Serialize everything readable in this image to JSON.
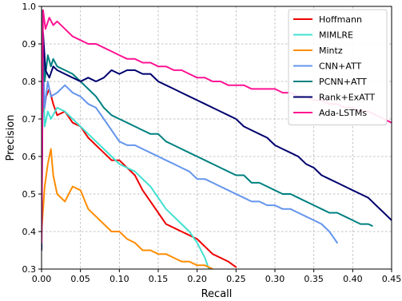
{
  "chart_data": {
    "type": "line",
    "xlabel": "Recall",
    "ylabel": "Precision",
    "xlim": [
      0.0,
      0.45
    ],
    "ylim": [
      0.3,
      1.0
    ],
    "xticks": [
      "0.00",
      "0.05",
      "0.10",
      "0.15",
      "0.20",
      "0.25",
      "0.30",
      "0.35",
      "0.40",
      "0.45"
    ],
    "yticks": [
      "0.3",
      "0.4",
      "0.5",
      "0.6",
      "0.7",
      "0.8",
      "0.9",
      "1.0"
    ],
    "grid": true,
    "legend_position": "top-right",
    "series": [
      {
        "name": "Hoffmann",
        "color": "#ee0000",
        "points": [
          [
            0.0,
            0.99
          ],
          [
            0.003,
            0.72
          ],
          [
            0.006,
            0.76
          ],
          [
            0.01,
            0.78
          ],
          [
            0.015,
            0.74
          ],
          [
            0.02,
            0.71
          ],
          [
            0.03,
            0.72
          ],
          [
            0.04,
            0.69
          ],
          [
            0.05,
            0.68
          ],
          [
            0.06,
            0.65
          ],
          [
            0.07,
            0.63
          ],
          [
            0.08,
            0.61
          ],
          [
            0.09,
            0.59
          ],
          [
            0.1,
            0.59
          ],
          [
            0.11,
            0.57
          ],
          [
            0.12,
            0.55
          ],
          [
            0.13,
            0.51
          ],
          [
            0.14,
            0.48
          ],
          [
            0.15,
            0.45
          ],
          [
            0.16,
            0.42
          ],
          [
            0.17,
            0.41
          ],
          [
            0.18,
            0.4
          ],
          [
            0.19,
            0.39
          ],
          [
            0.2,
            0.38
          ],
          [
            0.21,
            0.36
          ],
          [
            0.22,
            0.34
          ],
          [
            0.23,
            0.33
          ],
          [
            0.24,
            0.32
          ],
          [
            0.25,
            0.305
          ]
        ]
      },
      {
        "name": "MIMLRE",
        "color": "#40e0d0",
        "points": [
          [
            0.0,
            0.99
          ],
          [
            0.004,
            0.68
          ],
          [
            0.008,
            0.72
          ],
          [
            0.012,
            0.7
          ],
          [
            0.02,
            0.73
          ],
          [
            0.03,
            0.72
          ],
          [
            0.04,
            0.7
          ],
          [
            0.05,
            0.68
          ],
          [
            0.06,
            0.66
          ],
          [
            0.07,
            0.64
          ],
          [
            0.08,
            0.62
          ],
          [
            0.09,
            0.6
          ],
          [
            0.1,
            0.58
          ],
          [
            0.11,
            0.57
          ],
          [
            0.12,
            0.56
          ],
          [
            0.13,
            0.54
          ],
          [
            0.14,
            0.52
          ],
          [
            0.15,
            0.49
          ],
          [
            0.16,
            0.46
          ],
          [
            0.17,
            0.44
          ],
          [
            0.18,
            0.42
          ],
          [
            0.19,
            0.4
          ],
          [
            0.2,
            0.37
          ],
          [
            0.21,
            0.33
          ],
          [
            0.215,
            0.3
          ]
        ]
      },
      {
        "name": "Mintz",
        "color": "#ff8c00",
        "points": [
          [
            0.0,
            0.4
          ],
          [
            0.004,
            0.52
          ],
          [
            0.008,
            0.58
          ],
          [
            0.012,
            0.62
          ],
          [
            0.015,
            0.55
          ],
          [
            0.02,
            0.5
          ],
          [
            0.03,
            0.48
          ],
          [
            0.04,
            0.52
          ],
          [
            0.05,
            0.51
          ],
          [
            0.06,
            0.46
          ],
          [
            0.07,
            0.44
          ],
          [
            0.08,
            0.42
          ],
          [
            0.09,
            0.4
          ],
          [
            0.1,
            0.4
          ],
          [
            0.11,
            0.38
          ],
          [
            0.12,
            0.37
          ],
          [
            0.13,
            0.35
          ],
          [
            0.14,
            0.35
          ],
          [
            0.15,
            0.34
          ],
          [
            0.16,
            0.34
          ],
          [
            0.17,
            0.33
          ],
          [
            0.18,
            0.32
          ],
          [
            0.19,
            0.32
          ],
          [
            0.2,
            0.31
          ],
          [
            0.21,
            0.31
          ],
          [
            0.22,
            0.3
          ]
        ]
      },
      {
        "name": "CNN+ATT",
        "color": "#6495ed",
        "points": [
          [
            0.0,
            0.99
          ],
          [
            0.004,
            0.73
          ],
          [
            0.008,
            0.8
          ],
          [
            0.012,
            0.76
          ],
          [
            0.02,
            0.77
          ],
          [
            0.03,
            0.79
          ],
          [
            0.04,
            0.77
          ],
          [
            0.05,
            0.76
          ],
          [
            0.06,
            0.74
          ],
          [
            0.07,
            0.73
          ],
          [
            0.08,
            0.7
          ],
          [
            0.09,
            0.67
          ],
          [
            0.1,
            0.64
          ],
          [
            0.11,
            0.63
          ],
          [
            0.12,
            0.63
          ],
          [
            0.13,
            0.62
          ],
          [
            0.14,
            0.61
          ],
          [
            0.15,
            0.6
          ],
          [
            0.16,
            0.59
          ],
          [
            0.17,
            0.58
          ],
          [
            0.18,
            0.57
          ],
          [
            0.19,
            0.56
          ],
          [
            0.2,
            0.54
          ],
          [
            0.21,
            0.54
          ],
          [
            0.22,
            0.53
          ],
          [
            0.23,
            0.52
          ],
          [
            0.24,
            0.51
          ],
          [
            0.25,
            0.5
          ],
          [
            0.26,
            0.49
          ],
          [
            0.27,
            0.48
          ],
          [
            0.28,
            0.48
          ],
          [
            0.29,
            0.47
          ],
          [
            0.3,
            0.47
          ],
          [
            0.31,
            0.46
          ],
          [
            0.32,
            0.46
          ],
          [
            0.33,
            0.45
          ],
          [
            0.34,
            0.44
          ],
          [
            0.35,
            0.43
          ],
          [
            0.36,
            0.42
          ],
          [
            0.37,
            0.4
          ],
          [
            0.38,
            0.37
          ]
        ]
      },
      {
        "name": "PCNN+ATT",
        "color": "#008080",
        "points": [
          [
            0.0,
            0.99
          ],
          [
            0.004,
            0.8
          ],
          [
            0.008,
            0.87
          ],
          [
            0.012,
            0.84
          ],
          [
            0.015,
            0.86
          ],
          [
            0.02,
            0.84
          ],
          [
            0.03,
            0.83
          ],
          [
            0.04,
            0.82
          ],
          [
            0.05,
            0.8
          ],
          [
            0.06,
            0.78
          ],
          [
            0.07,
            0.76
          ],
          [
            0.08,
            0.73
          ],
          [
            0.09,
            0.71
          ],
          [
            0.1,
            0.7
          ],
          [
            0.11,
            0.69
          ],
          [
            0.12,
            0.68
          ],
          [
            0.13,
            0.67
          ],
          [
            0.14,
            0.66
          ],
          [
            0.15,
            0.66
          ],
          [
            0.16,
            0.64
          ],
          [
            0.17,
            0.63
          ],
          [
            0.18,
            0.62
          ],
          [
            0.19,
            0.61
          ],
          [
            0.2,
            0.6
          ],
          [
            0.21,
            0.59
          ],
          [
            0.22,
            0.58
          ],
          [
            0.23,
            0.57
          ],
          [
            0.24,
            0.56
          ],
          [
            0.25,
            0.55
          ],
          [
            0.26,
            0.55
          ],
          [
            0.27,
            0.53
          ],
          [
            0.28,
            0.53
          ],
          [
            0.29,
            0.52
          ],
          [
            0.3,
            0.51
          ],
          [
            0.31,
            0.5
          ],
          [
            0.32,
            0.5
          ],
          [
            0.33,
            0.49
          ],
          [
            0.34,
            0.48
          ],
          [
            0.35,
            0.47
          ],
          [
            0.36,
            0.46
          ],
          [
            0.37,
            0.45
          ],
          [
            0.38,
            0.45
          ],
          [
            0.39,
            0.44
          ],
          [
            0.4,
            0.43
          ],
          [
            0.41,
            0.42
          ],
          [
            0.42,
            0.42
          ],
          [
            0.425,
            0.415
          ]
        ]
      },
      {
        "name": "Rank+ExATT",
        "color": "#00006e",
        "points": [
          [
            0.0,
            0.35
          ],
          [
            0.002,
            0.93
          ],
          [
            0.005,
            0.83
          ],
          [
            0.01,
            0.81
          ],
          [
            0.015,
            0.84
          ],
          [
            0.02,
            0.83
          ],
          [
            0.03,
            0.82
          ],
          [
            0.04,
            0.81
          ],
          [
            0.05,
            0.8
          ],
          [
            0.06,
            0.81
          ],
          [
            0.07,
            0.8
          ],
          [
            0.08,
            0.81
          ],
          [
            0.09,
            0.83
          ],
          [
            0.1,
            0.82
          ],
          [
            0.11,
            0.83
          ],
          [
            0.12,
            0.83
          ],
          [
            0.13,
            0.82
          ],
          [
            0.14,
            0.82
          ],
          [
            0.15,
            0.8
          ],
          [
            0.16,
            0.79
          ],
          [
            0.17,
            0.78
          ],
          [
            0.18,
            0.77
          ],
          [
            0.19,
            0.76
          ],
          [
            0.2,
            0.75
          ],
          [
            0.21,
            0.74
          ],
          [
            0.22,
            0.73
          ],
          [
            0.23,
            0.72
          ],
          [
            0.24,
            0.71
          ],
          [
            0.25,
            0.7
          ],
          [
            0.26,
            0.68
          ],
          [
            0.27,
            0.67
          ],
          [
            0.28,
            0.66
          ],
          [
            0.29,
            0.65
          ],
          [
            0.3,
            0.63
          ],
          [
            0.31,
            0.62
          ],
          [
            0.32,
            0.61
          ],
          [
            0.33,
            0.6
          ],
          [
            0.34,
            0.58
          ],
          [
            0.35,
            0.57
          ],
          [
            0.36,
            0.55
          ],
          [
            0.37,
            0.54
          ],
          [
            0.38,
            0.53
          ],
          [
            0.39,
            0.52
          ],
          [
            0.4,
            0.51
          ],
          [
            0.41,
            0.5
          ],
          [
            0.42,
            0.49
          ],
          [
            0.43,
            0.47
          ],
          [
            0.44,
            0.45
          ],
          [
            0.45,
            0.43
          ]
        ]
      },
      {
        "name": "Ada-LSTMs",
        "color": "#ff1493",
        "points": [
          [
            0.0,
            0.37
          ],
          [
            0.002,
            0.99
          ],
          [
            0.005,
            0.94
          ],
          [
            0.01,
            0.97
          ],
          [
            0.015,
            0.95
          ],
          [
            0.02,
            0.96
          ],
          [
            0.03,
            0.94
          ],
          [
            0.04,
            0.92
          ],
          [
            0.05,
            0.91
          ],
          [
            0.06,
            0.9
          ],
          [
            0.07,
            0.9
          ],
          [
            0.08,
            0.89
          ],
          [
            0.09,
            0.88
          ],
          [
            0.1,
            0.87
          ],
          [
            0.11,
            0.86
          ],
          [
            0.12,
            0.86
          ],
          [
            0.13,
            0.85
          ],
          [
            0.14,
            0.85
          ],
          [
            0.15,
            0.84
          ],
          [
            0.16,
            0.84
          ],
          [
            0.17,
            0.83
          ],
          [
            0.18,
            0.83
          ],
          [
            0.19,
            0.82
          ],
          [
            0.2,
            0.81
          ],
          [
            0.21,
            0.81
          ],
          [
            0.22,
            0.8
          ],
          [
            0.23,
            0.8
          ],
          [
            0.24,
            0.79
          ],
          [
            0.25,
            0.79
          ],
          [
            0.26,
            0.79
          ],
          [
            0.27,
            0.78
          ],
          [
            0.28,
            0.78
          ],
          [
            0.29,
            0.78
          ],
          [
            0.3,
            0.78
          ],
          [
            0.31,
            0.77
          ],
          [
            0.32,
            0.77
          ],
          [
            0.33,
            0.76
          ],
          [
            0.34,
            0.76
          ],
          [
            0.35,
            0.75
          ],
          [
            0.36,
            0.75
          ],
          [
            0.37,
            0.74
          ],
          [
            0.38,
            0.74
          ],
          [
            0.39,
            0.73
          ],
          [
            0.4,
            0.73
          ],
          [
            0.41,
            0.72
          ],
          [
            0.42,
            0.72
          ],
          [
            0.43,
            0.71
          ],
          [
            0.44,
            0.7
          ],
          [
            0.45,
            0.69
          ]
        ]
      }
    ]
  }
}
